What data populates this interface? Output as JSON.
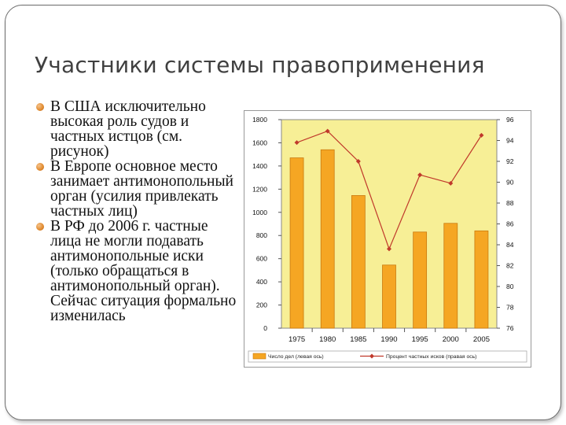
{
  "slide": {
    "title": "Участники системы правоприменения",
    "bullets": [
      "В США исключительно высокая роль судов и частных истцов (см. рисунок)",
      "В Европе основное место занимает антимонопольный орган (усилия привлекать частных лиц)",
      "В РФ до 2006 г. частные лица не могли подавать антимонопольные иски (только обращаться в антимонопольный орган). Сейчас ситуация формально изменилась"
    ]
  },
  "colors": {
    "bar_fill": "#f5a623",
    "bar_edge": "#c97a10",
    "plot_bg": "#f7ef96",
    "line": "#c0392b",
    "bullet": "#e08a2f"
  },
  "chart_data": {
    "type": "bar",
    "categories": [
      "1975",
      "1980",
      "1985",
      "1990",
      "1995",
      "2000",
      "2005"
    ],
    "series": [
      {
        "name": "Число дел (левая ось)",
        "type": "bar",
        "axis": "left",
        "values": [
          1470,
          1540,
          1145,
          545,
          830,
          905,
          840
        ]
      },
      {
        "name": "Процент частных исков (правая ось)",
        "type": "line",
        "axis": "right",
        "values": [
          93.8,
          94.9,
          92,
          83.6,
          90.7,
          89.9,
          94.5
        ]
      }
    ],
    "ylim_left": [
      0,
      1800
    ],
    "yticks_left": [
      "0",
      "200",
      "400",
      "600",
      "800",
      "1000",
      "1200",
      "1400",
      "1600",
      "1800"
    ],
    "ylim_right": [
      76,
      96
    ],
    "yticks_right": [
      "76",
      "78",
      "80",
      "82",
      "84",
      "86",
      "88",
      "90",
      "92",
      "94",
      "96"
    ],
    "grid": false,
    "legend_position": "bottom"
  }
}
